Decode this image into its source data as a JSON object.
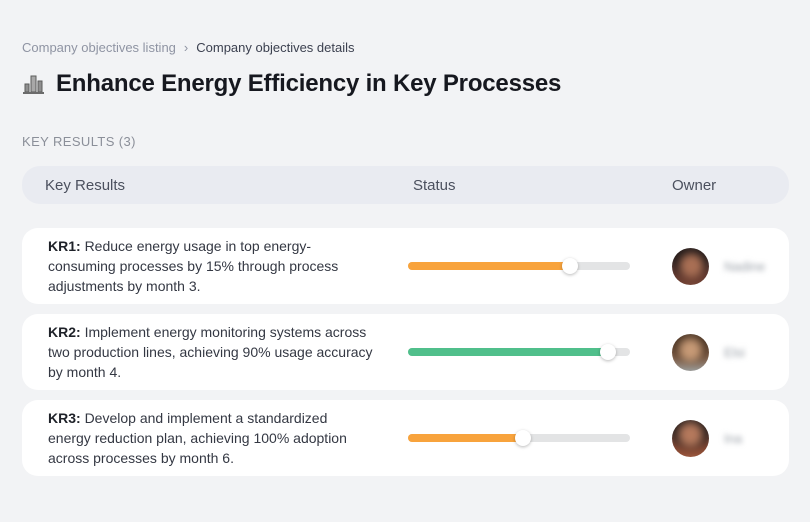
{
  "breadcrumb": {
    "items": [
      {
        "label": "Company objectives listing"
      },
      {
        "label": "Company objectives details"
      }
    ],
    "separator": "›"
  },
  "header": {
    "icon": "city-buildings-icon",
    "title": "Enhance Energy Efficiency in Key Processes"
  },
  "section": {
    "label": "KEY RESULTS (3)"
  },
  "table": {
    "columns": [
      "Key Results",
      "Status",
      "Owner"
    ],
    "rows": [
      {
        "kr_label": "KR1:",
        "kr_text": "Reduce energy usage in top energy-consuming processes by 15% through process adjustments by month 3.",
        "progress_percent": 73,
        "progress_color": "#F8A33C",
        "owner": {
          "name": "Nadine"
        }
      },
      {
        "kr_label": "KR2:",
        "kr_text": "Implement energy monitoring systems across two production lines, achieving 90% usage accuracy by month 4.",
        "progress_percent": 90,
        "progress_color": "#50BF8B",
        "owner": {
          "name": "Elsi"
        }
      },
      {
        "kr_label": "KR3:",
        "kr_text": "Develop and implement a standardized energy reduction plan, achieving 100% adoption across processes by month 6.",
        "progress_percent": 52,
        "progress_color": "#F8A33C",
        "owner": {
          "name": "Ina"
        }
      }
    ]
  },
  "colors": {
    "page_background": "#f2f3f5",
    "table_header_background": "#e9ebf1",
    "card_background": "#ffffff",
    "track": "#e3e4e5",
    "orange": "#F8A33C",
    "green": "#50BF8B"
  }
}
